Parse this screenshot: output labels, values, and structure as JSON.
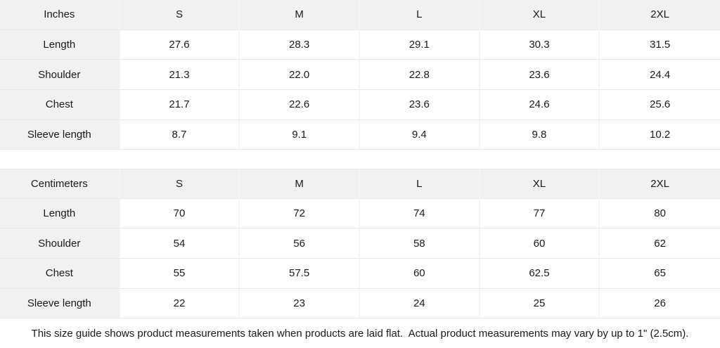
{
  "colors": {
    "header_cell_bg": "#f1f1f1",
    "row_border": "#e7e7e7",
    "column_divider": "#f5f5f5",
    "text": "#1a1a1a",
    "page_bg": "#ffffff"
  },
  "chart_data": [
    {
      "type": "table",
      "unit": "Inches",
      "sizes": [
        "S",
        "M",
        "L",
        "XL",
        "2XL"
      ],
      "measurements": [
        {
          "label": "Length",
          "values": [
            "27.6",
            "28.3",
            "29.1",
            "30.3",
            "31.5"
          ]
        },
        {
          "label": "Shoulder",
          "values": [
            "21.3",
            "22.0",
            "22.8",
            "23.6",
            "24.4"
          ]
        },
        {
          "label": "Chest",
          "values": [
            "21.7",
            "22.6",
            "23.6",
            "24.6",
            "25.6"
          ]
        },
        {
          "label": "Sleeve length",
          "values": [
            "8.7",
            "9.1",
            "9.4",
            "9.8",
            "10.2"
          ]
        }
      ]
    },
    {
      "type": "table",
      "unit": "Centimeters",
      "sizes": [
        "S",
        "M",
        "L",
        "XL",
        "2XL"
      ],
      "measurements": [
        {
          "label": "Length",
          "values": [
            "70",
            "72",
            "74",
            "77",
            "80"
          ]
        },
        {
          "label": "Shoulder",
          "values": [
            "54",
            "56",
            "58",
            "60",
            "62"
          ]
        },
        {
          "label": "Chest",
          "values": [
            "55",
            "57.5",
            "60",
            "62.5",
            "65"
          ]
        },
        {
          "label": "Sleeve length",
          "values": [
            "22",
            "23",
            "24",
            "25",
            "26"
          ]
        }
      ]
    }
  ],
  "footnote": "This size guide shows product measurements taken when products are laid flat.  Actual product measurements may vary by up to 1\" (2.5cm)."
}
